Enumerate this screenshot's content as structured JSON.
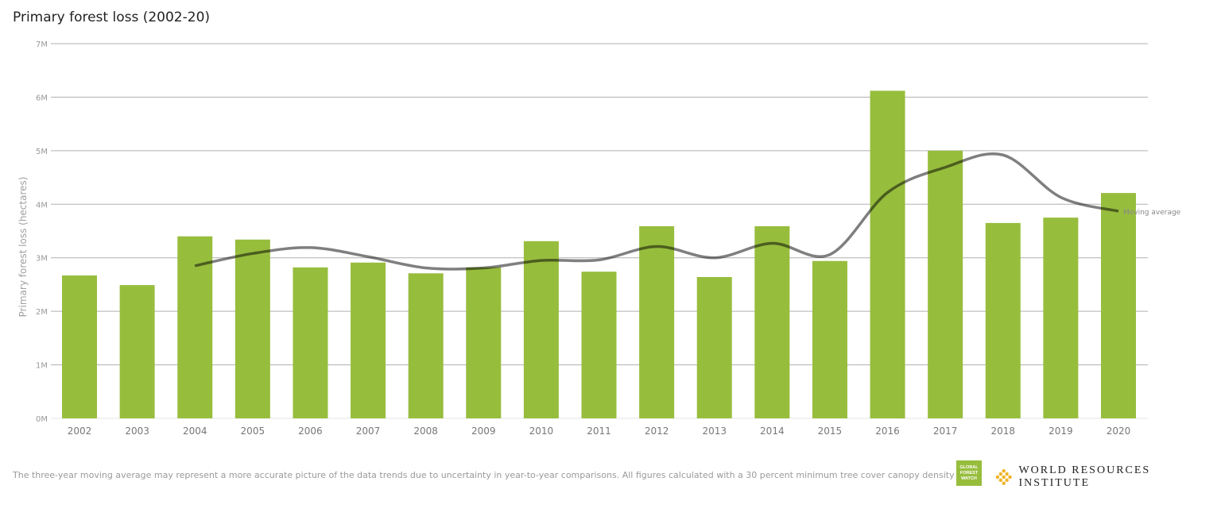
{
  "chart_data": {
    "type": "bar",
    "title": "Primary forest loss (2002-20)",
    "ylabel": "Primary forest loss (hectares)",
    "xlabel": "",
    "ylim": [
      0,
      7000000
    ],
    "yticks": [
      "0M",
      "1M",
      "2M",
      "3M",
      "4M",
      "5M",
      "6M",
      "7M"
    ],
    "grid": true,
    "categories": [
      "2002",
      "2003",
      "2004",
      "2005",
      "2006",
      "2007",
      "2008",
      "2009",
      "2010",
      "2011",
      "2012",
      "2013",
      "2014",
      "2015",
      "2016",
      "2017",
      "2018",
      "2019",
      "2020"
    ],
    "series": [
      {
        "type": "bar",
        "values": [
          2670000,
          2490000,
          3400000,
          3340000,
          2820000,
          2910000,
          2710000,
          2820000,
          3310000,
          2740000,
          3590000,
          2640000,
          3590000,
          2940000,
          6120000,
          5000000,
          3650000,
          3750000,
          4210000
        ],
        "color": "#97bd3d"
      },
      {
        "type": "line",
        "name": "Moving average",
        "values": [
          null,
          null,
          2850000,
          3080000,
          3190000,
          3020000,
          2810000,
          2810000,
          2950000,
          2960000,
          3210000,
          3000000,
          3270000,
          3060000,
          4220000,
          4690000,
          4920000,
          4130000,
          3870000
        ],
        "color": "#000000"
      }
    ]
  },
  "footnote": "The three-year moving average may represent a more accurate picture of the data trends due to uncertainty in year-to-year comparisons. All figures calculated with a 30 percent minimum tree cover canopy density",
  "logos": {
    "gfw": [
      "GLOBAL",
      "FOREST",
      "WATCH"
    ],
    "wri": "WORLD RESOURCES INSTITUTE"
  }
}
